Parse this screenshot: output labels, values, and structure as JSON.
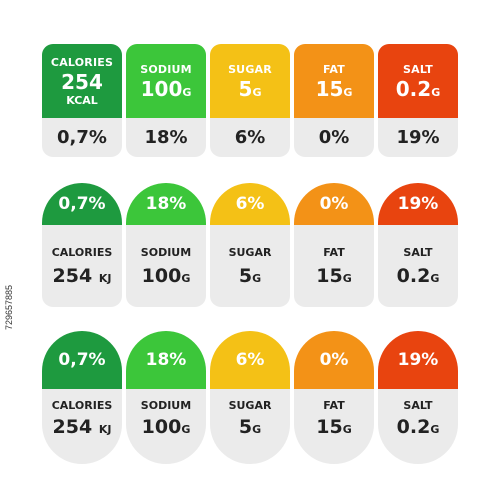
{
  "colors": {
    "calories": "#1e9a3f",
    "sodium": "#3cc63a",
    "sugar": "#f4c116",
    "fat": "#f39217",
    "salt": "#e8440f",
    "body": "#ebebeb"
  },
  "row1": [
    {
      "name": "CALORIES",
      "value": "254",
      "unit": "KCAL",
      "percent": "0,7%"
    },
    {
      "name": "SODIUM",
      "value": "100",
      "unit": "G",
      "percent": "18%"
    },
    {
      "name": "SUGAR",
      "value": "5",
      "unit": "G",
      "percent": "6%"
    },
    {
      "name": "FAT",
      "value": "15",
      "unit": "G",
      "percent": "0%"
    },
    {
      "name": "SALT",
      "value": "0.2",
      "unit": "G",
      "percent": "19%"
    }
  ],
  "row2": [
    {
      "name": "CALORIES",
      "value": "254",
      "unit": "KJ",
      "percent": "0,7%"
    },
    {
      "name": "SODIUM",
      "value": "100",
      "unit": "G",
      "percent": "18%"
    },
    {
      "name": "SUGAR",
      "value": "5",
      "unit": "G",
      "percent": "6%"
    },
    {
      "name": "FAT",
      "value": "15",
      "unit": "G",
      "percent": "0%"
    },
    {
      "name": "SALT",
      "value": "0.2",
      "unit": "G",
      "percent": "19%"
    }
  ],
  "row3": [
    {
      "name": "CALORIES",
      "value": "254",
      "unit": "KJ",
      "percent": "0,7%"
    },
    {
      "name": "SODIUM",
      "value": "100",
      "unit": "G",
      "percent": "18%"
    },
    {
      "name": "SUGAR",
      "value": "5",
      "unit": "G",
      "percent": "6%"
    },
    {
      "name": "FAT",
      "value": "15",
      "unit": "G",
      "percent": "0%"
    },
    {
      "name": "SALT",
      "value": "0.2",
      "unit": "G",
      "percent": "19%"
    }
  ],
  "stock_id": "729657885"
}
